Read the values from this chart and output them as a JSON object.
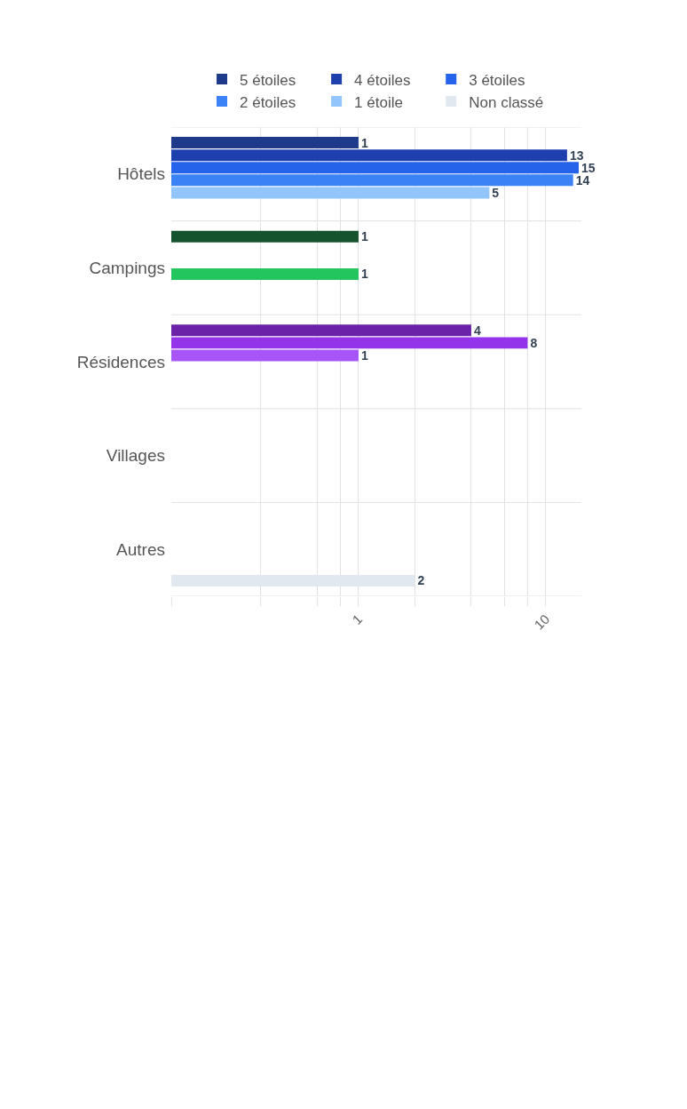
{
  "chart_data": {
    "type": "bar",
    "orientation": "horizontal",
    "log": "x",
    "categories": [
      "Hôtels",
      "Campings",
      "Résidences",
      "Villages",
      "Autres"
    ],
    "series": [
      {
        "name": "5 étoiles",
        "color": "#334155",
        "colors": [
          "#1e3a8a",
          "#14532d",
          "#6b21a8",
          null,
          null
        ],
        "values": [
          1,
          1,
          4,
          null,
          null
        ]
      },
      {
        "name": "4 étoiles",
        "color": "#475569",
        "colors": [
          "#1e40af",
          null,
          "#9333ea",
          null,
          null
        ],
        "values": [
          13,
          null,
          8,
          null,
          null
        ]
      },
      {
        "name": "3 étoiles",
        "color": "#64748b",
        "colors": [
          "#2563eb",
          null,
          "#a855f7",
          null,
          null
        ],
        "values": [
          15,
          null,
          1,
          null,
          null
        ]
      },
      {
        "name": "2 étoiles",
        "color": "#94a3b8",
        "colors": [
          "#3b82f6",
          "#22c55e",
          null,
          null,
          null
        ],
        "values": [
          14,
          1,
          null,
          null,
          null
        ]
      },
      {
        "name": "1 étoile",
        "color": "#cbd5e1",
        "colors": [
          "#93c5fd",
          null,
          null,
          null,
          null
        ],
        "values": [
          5,
          null,
          null,
          null,
          null
        ]
      },
      {
        "name": "Non classé",
        "color": "#e2e8f0",
        "colors": [
          null,
          null,
          null,
          null,
          "#e2e8f0"
        ],
        "values": [
          null,
          null,
          null,
          null,
          2
        ]
      }
    ],
    "xlim": [
      0.1,
      15.5
    ],
    "xticks": [
      {
        "value": 0.1,
        "label": null
      },
      {
        "value": 0.3,
        "label": null
      },
      {
        "value": 0.6,
        "label": null
      },
      {
        "value": 0.8,
        "label": null
      },
      1,
      {
        "value": 2,
        "label": null
      },
      {
        "value": 4,
        "label": null
      },
      {
        "value": 6,
        "label": null
      },
      {
        "value": 8,
        "label": null
      },
      10
    ],
    "grid": true,
    "legend": "top",
    "data_labels": true
  }
}
